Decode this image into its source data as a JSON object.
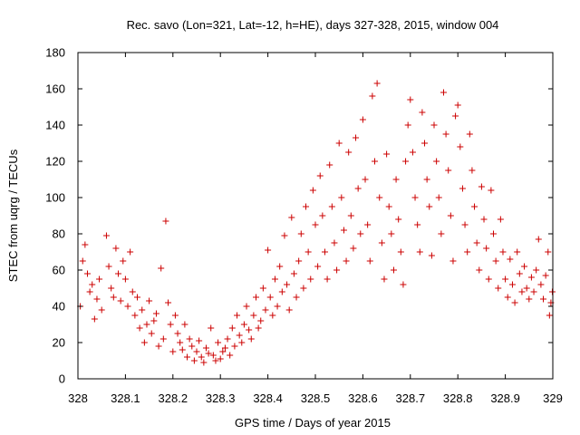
{
  "chart_data": {
    "type": "scatter",
    "title": "Rec. savo (Lon=321, Lat=-12, h=HE), days 327-328, 2015, window 004",
    "xlabel": "GPS time / Days of year 2015",
    "ylabel": "STEC from uqrg / TECUs",
    "xlim": [
      328,
      329
    ],
    "ylim": [
      0,
      180
    ],
    "x_ticks": [
      "328",
      "328.1",
      "328.2",
      "328.3",
      "328.4",
      "328.5",
      "328.6",
      "328.7",
      "328.8",
      "328.9",
      "329"
    ],
    "y_ticks": [
      "0",
      "20",
      "40",
      "60",
      "80",
      "100",
      "120",
      "140",
      "160",
      "180"
    ],
    "grid": false,
    "legend": "none",
    "marker": "+",
    "color": "#cc0000",
    "series": [
      {
        "points": [
          [
            328.005,
            40
          ],
          [
            328.01,
            65
          ],
          [
            328.015,
            74
          ],
          [
            328.02,
            58
          ],
          [
            328.025,
            48
          ],
          [
            328.03,
            52
          ],
          [
            328.035,
            33
          ],
          [
            328.04,
            44
          ],
          [
            328.045,
            55
          ],
          [
            328.05,
            38
          ],
          [
            328.06,
            79
          ],
          [
            328.065,
            62
          ],
          [
            328.07,
            50
          ],
          [
            328.075,
            45
          ],
          [
            328.08,
            72
          ],
          [
            328.085,
            58
          ],
          [
            328.09,
            43
          ],
          [
            328.095,
            65
          ],
          [
            328.1,
            55
          ],
          [
            328.105,
            40
          ],
          [
            328.11,
            70
          ],
          [
            328.115,
            48
          ],
          [
            328.12,
            35
          ],
          [
            328.125,
            45
          ],
          [
            328.13,
            28
          ],
          [
            328.135,
            38
          ],
          [
            328.14,
            20
          ],
          [
            328.145,
            30
          ],
          [
            328.15,
            43
          ],
          [
            328.155,
            25
          ],
          [
            328.16,
            32
          ],
          [
            328.165,
            36
          ],
          [
            328.17,
            18
          ],
          [
            328.175,
            61
          ],
          [
            328.18,
            22
          ],
          [
            328.185,
            87
          ],
          [
            328.19,
            42
          ],
          [
            328.195,
            30
          ],
          [
            328.2,
            15
          ],
          [
            328.205,
            35
          ],
          [
            328.21,
            25
          ],
          [
            328.215,
            20
          ],
          [
            328.22,
            16
          ],
          [
            328.225,
            30
          ],
          [
            328.23,
            12
          ],
          [
            328.235,
            22
          ],
          [
            328.24,
            18
          ],
          [
            328.245,
            10
          ],
          [
            328.25,
            15
          ],
          [
            328.255,
            21
          ],
          [
            328.26,
            12
          ],
          [
            328.265,
            9
          ],
          [
            328.27,
            17
          ],
          [
            328.275,
            14
          ],
          [
            328.28,
            28
          ],
          [
            328.285,
            13
          ],
          [
            328.29,
            10
          ],
          [
            328.295,
            20
          ],
          [
            328.3,
            11
          ],
          [
            328.305,
            15
          ],
          [
            328.31,
            17
          ],
          [
            328.315,
            22
          ],
          [
            328.32,
            13
          ],
          [
            328.325,
            28
          ],
          [
            328.33,
            18
          ],
          [
            328.335,
            35
          ],
          [
            328.34,
            24
          ],
          [
            328.345,
            20
          ],
          [
            328.35,
            30
          ],
          [
            328.355,
            40
          ],
          [
            328.36,
            27
          ],
          [
            328.365,
            22
          ],
          [
            328.37,
            35
          ],
          [
            328.375,
            45
          ],
          [
            328.38,
            28
          ],
          [
            328.385,
            32
          ],
          [
            328.39,
            50
          ],
          [
            328.395,
            38
          ],
          [
            328.4,
            71
          ],
          [
            328.405,
            45
          ],
          [
            328.41,
            35
          ],
          [
            328.415,
            55
          ],
          [
            328.42,
            40
          ],
          [
            328.425,
            62
          ],
          [
            328.43,
            48
          ],
          [
            328.435,
            79
          ],
          [
            328.44,
            52
          ],
          [
            328.445,
            38
          ],
          [
            328.45,
            89
          ],
          [
            328.455,
            58
          ],
          [
            328.46,
            45
          ],
          [
            328.465,
            65
          ],
          [
            328.47,
            80
          ],
          [
            328.475,
            50
          ],
          [
            328.48,
            95
          ],
          [
            328.485,
            70
          ],
          [
            328.49,
            55
          ],
          [
            328.495,
            104
          ],
          [
            328.5,
            85
          ],
          [
            328.505,
            62
          ],
          [
            328.51,
            112
          ],
          [
            328.515,
            90
          ],
          [
            328.52,
            70
          ],
          [
            328.525,
            55
          ],
          [
            328.53,
            118
          ],
          [
            328.535,
            95
          ],
          [
            328.54,
            75
          ],
          [
            328.545,
            60
          ],
          [
            328.55,
            130
          ],
          [
            328.555,
            100
          ],
          [
            328.56,
            82
          ],
          [
            328.565,
            65
          ],
          [
            328.57,
            125
          ],
          [
            328.575,
            90
          ],
          [
            328.58,
            72
          ],
          [
            328.585,
            133
          ],
          [
            328.59,
            105
          ],
          [
            328.595,
            80
          ],
          [
            328.6,
            143
          ],
          [
            328.605,
            110
          ],
          [
            328.61,
            85
          ],
          [
            328.615,
            65
          ],
          [
            328.62,
            156
          ],
          [
            328.625,
            120
          ],
          [
            328.63,
            163
          ],
          [
            328.635,
            100
          ],
          [
            328.64,
            75
          ],
          [
            328.645,
            55
          ],
          [
            328.65,
            124
          ],
          [
            328.655,
            95
          ],
          [
            328.66,
            80
          ],
          [
            328.665,
            60
          ],
          [
            328.67,
            110
          ],
          [
            328.675,
            88
          ],
          [
            328.68,
            70
          ],
          [
            328.685,
            52
          ],
          [
            328.69,
            120
          ],
          [
            328.695,
            140
          ],
          [
            328.7,
            154
          ],
          [
            328.705,
            125
          ],
          [
            328.71,
            100
          ],
          [
            328.715,
            85
          ],
          [
            328.72,
            70
          ],
          [
            328.725,
            147
          ],
          [
            328.73,
            130
          ],
          [
            328.735,
            110
          ],
          [
            328.74,
            95
          ],
          [
            328.745,
            68
          ],
          [
            328.75,
            140
          ],
          [
            328.755,
            120
          ],
          [
            328.76,
            100
          ],
          [
            328.765,
            80
          ],
          [
            328.77,
            158
          ],
          [
            328.775,
            135
          ],
          [
            328.78,
            115
          ],
          [
            328.785,
            90
          ],
          [
            328.79,
            65
          ],
          [
            328.795,
            145
          ],
          [
            328.8,
            151
          ],
          [
            328.805,
            128
          ],
          [
            328.81,
            105
          ],
          [
            328.815,
            85
          ],
          [
            328.82,
            70
          ],
          [
            328.825,
            135
          ],
          [
            328.83,
            115
          ],
          [
            328.835,
            95
          ],
          [
            328.84,
            75
          ],
          [
            328.845,
            60
          ],
          [
            328.85,
            106
          ],
          [
            328.855,
            88
          ],
          [
            328.86,
            72
          ],
          [
            328.865,
            55
          ],
          [
            328.87,
            104
          ],
          [
            328.875,
            80
          ],
          [
            328.88,
            65
          ],
          [
            328.885,
            50
          ],
          [
            328.89,
            88
          ],
          [
            328.895,
            70
          ],
          [
            328.9,
            55
          ],
          [
            328.905,
            45
          ],
          [
            328.91,
            66
          ],
          [
            328.915,
            52
          ],
          [
            328.92,
            42
          ],
          [
            328.925,
            70
          ],
          [
            328.93,
            58
          ],
          [
            328.935,
            48
          ],
          [
            328.94,
            62
          ],
          [
            328.945,
            50
          ],
          [
            328.95,
            44
          ],
          [
            328.955,
            56
          ],
          [
            328.96,
            48
          ],
          [
            328.965,
            60
          ],
          [
            328.97,
            77
          ],
          [
            328.975,
            52
          ],
          [
            328.98,
            44
          ],
          [
            328.985,
            57
          ],
          [
            328.99,
            70
          ],
          [
            328.993,
            35
          ],
          [
            328.996,
            42
          ],
          [
            328.999,
            48
          ]
        ]
      }
    ]
  }
}
